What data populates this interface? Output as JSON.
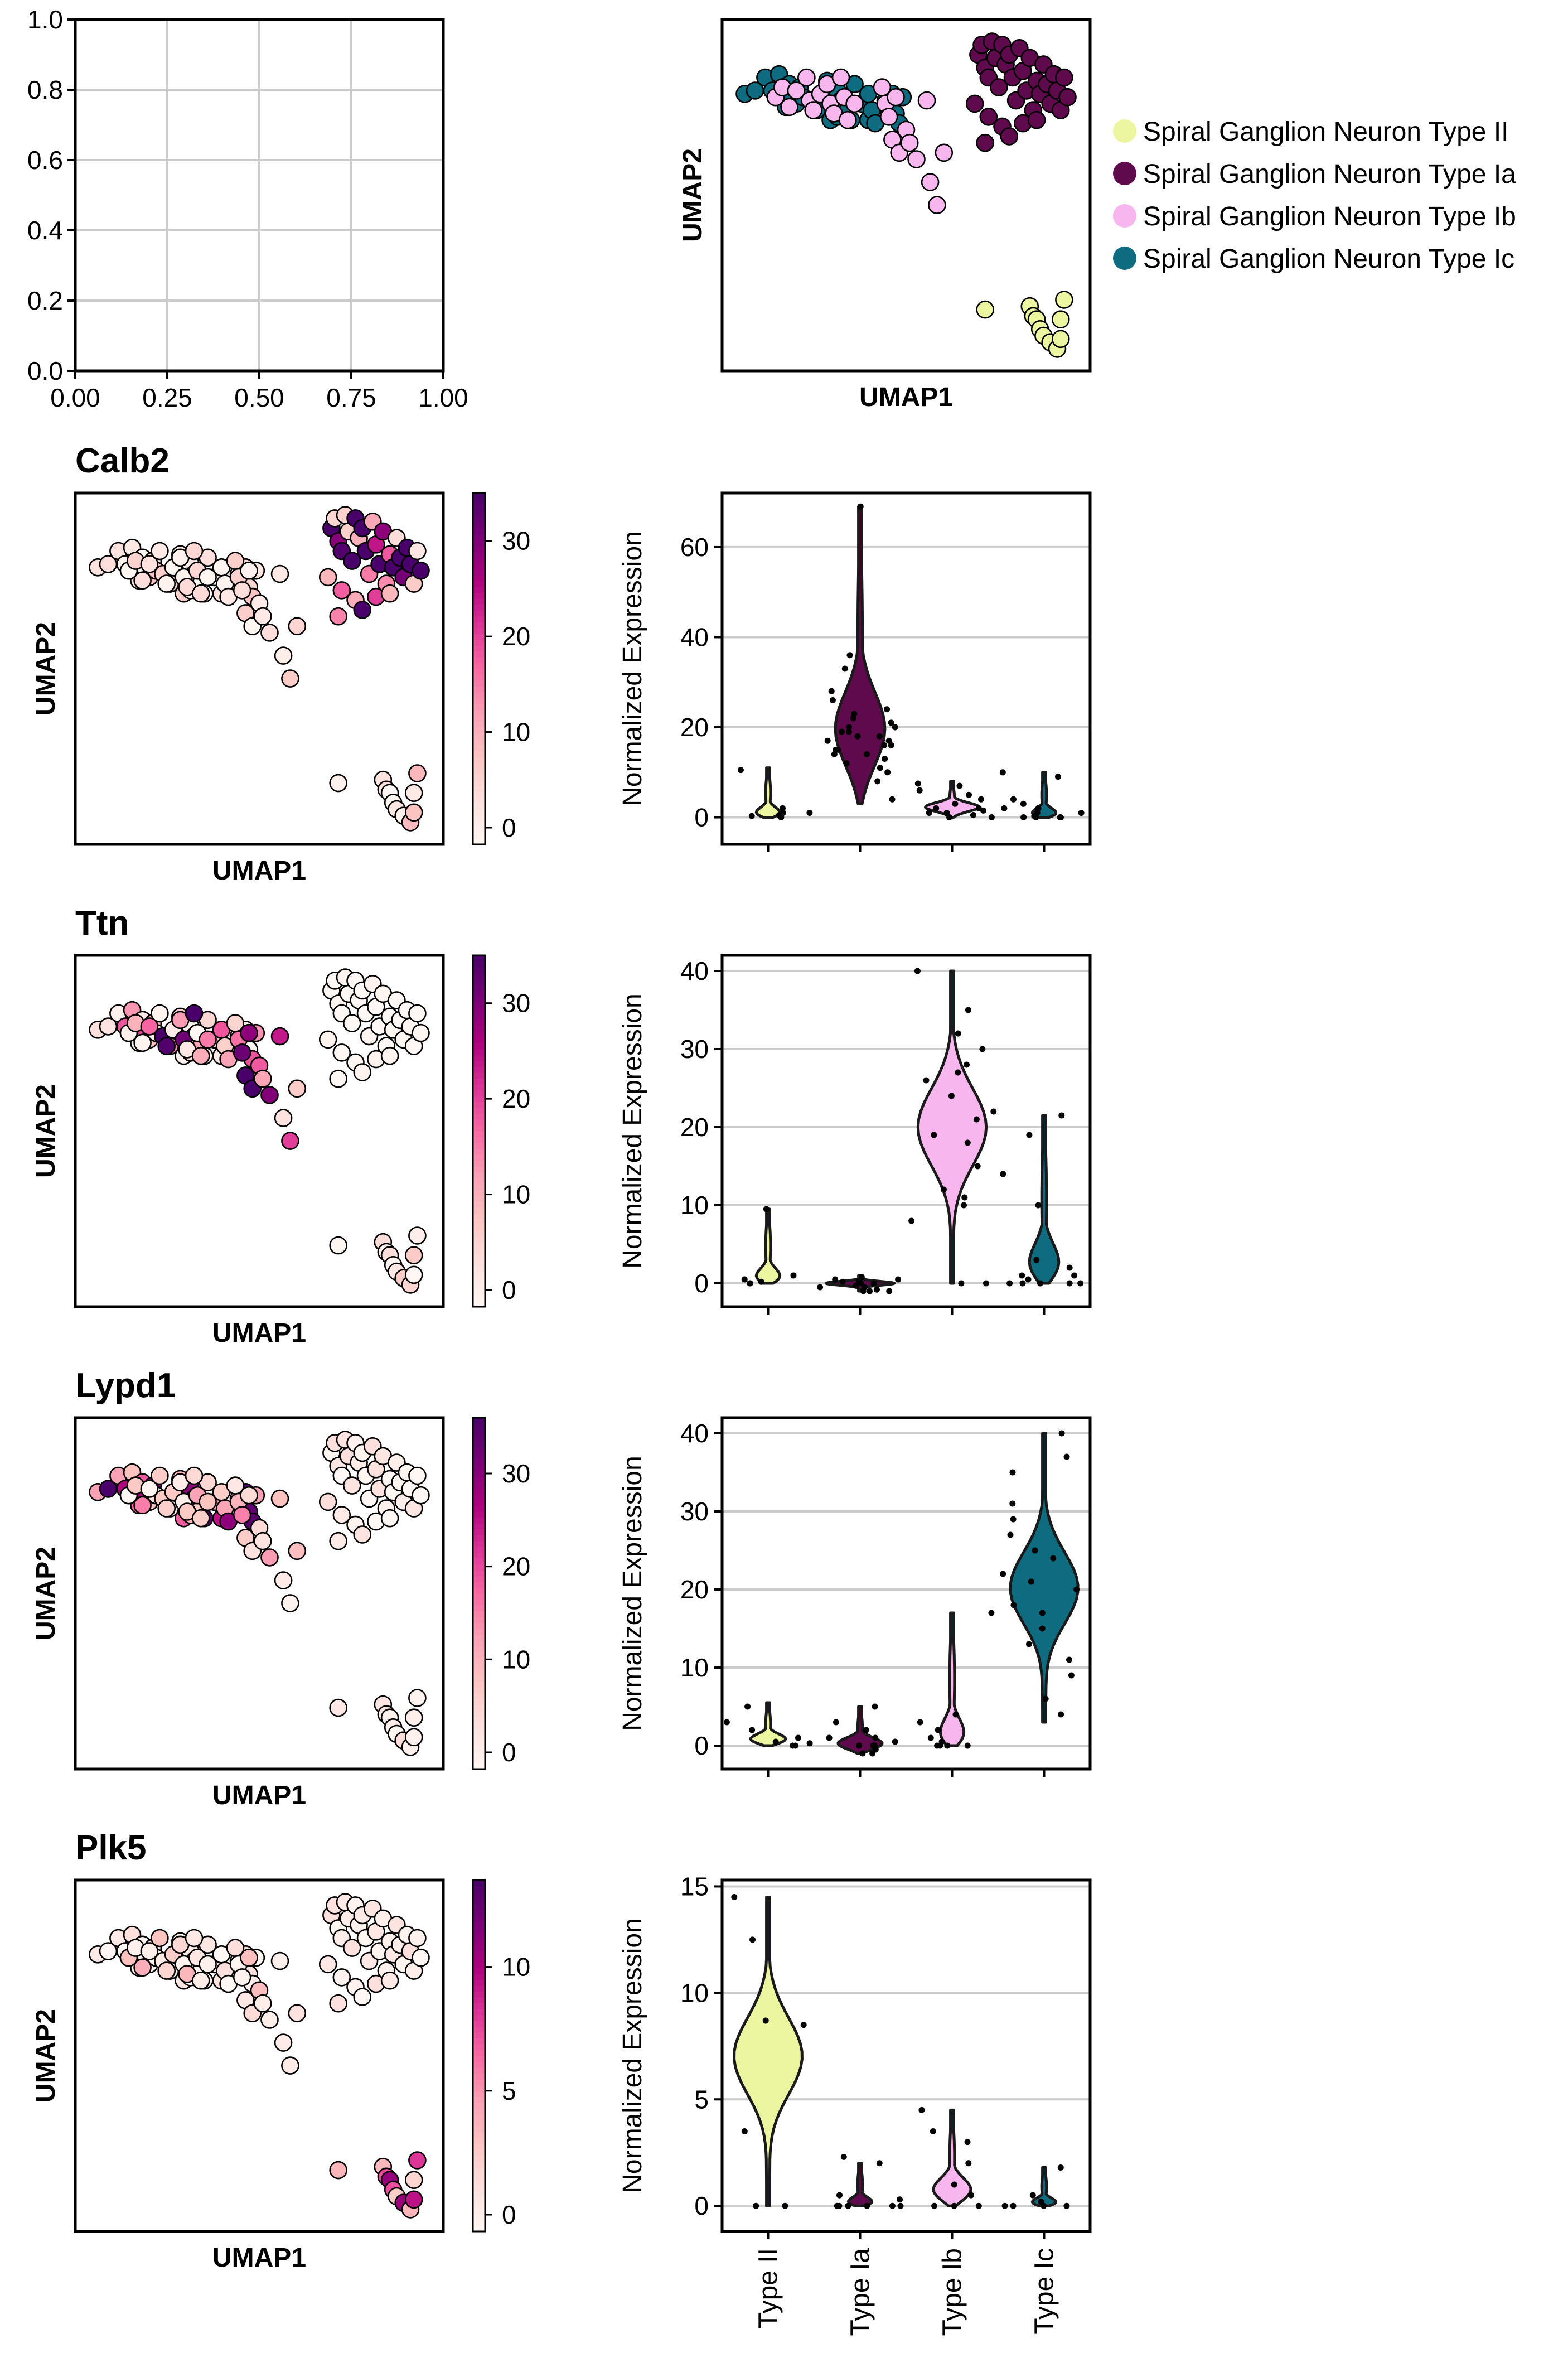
{
  "chart_data": {
    "type": "scatter",
    "cell_types": [
      {
        "key": "II",
        "name": "Spiral Ganglion Neuron Type II",
        "short": "Type II",
        "color": "#ecf5a0"
      },
      {
        "key": "Ia",
        "name": "Spiral Ganglion Neuron Type Ia",
        "short": "Type Ia",
        "color": "#5e0a4c"
      },
      {
        "key": "Ib",
        "name": "Spiral Ganglion Neuron Type Ib",
        "short": "Type Ib",
        "color": "#f7b6ee"
      },
      {
        "key": "Ic",
        "name": "Spiral Ganglion Neuron Type Ic",
        "short": "Type Ic",
        "color": "#0f6b80"
      }
    ],
    "empty_panel": {
      "x_ticks": [
        "0.00",
        "0.25",
        "0.50",
        "0.75",
        "1.00"
      ],
      "y_ticks": [
        "0.0",
        "0.2",
        "0.4",
        "0.6",
        "0.8",
        "1.0"
      ]
    },
    "umap": {
      "xlabel": "UMAP1",
      "ylabel": "UMAP2",
      "legend_position": "right",
      "points": [
        {
          "x": 0.03,
          "y": 0.81,
          "t": "Ic"
        },
        {
          "x": 0.06,
          "y": 0.82,
          "t": "Ic"
        },
        {
          "x": 0.09,
          "y": 0.86,
          "t": "Ic"
        },
        {
          "x": 0.11,
          "y": 0.82,
          "t": "Ic"
        },
        {
          "x": 0.13,
          "y": 0.87,
          "t": "Ic"
        },
        {
          "x": 0.14,
          "y": 0.8,
          "t": "Ic"
        },
        {
          "x": 0.15,
          "y": 0.77,
          "t": "Ic"
        },
        {
          "x": 0.16,
          "y": 0.84,
          "t": "Ic"
        },
        {
          "x": 0.17,
          "y": 0.8,
          "t": "Ic"
        },
        {
          "x": 0.18,
          "y": 0.78,
          "t": "Ic"
        },
        {
          "x": 0.19,
          "y": 0.83,
          "t": "Ic"
        },
        {
          "x": 0.2,
          "y": 0.8,
          "t": "Ic"
        },
        {
          "x": 0.24,
          "y": 0.76,
          "t": "Ic"
        },
        {
          "x": 0.27,
          "y": 0.85,
          "t": "Ic"
        },
        {
          "x": 0.28,
          "y": 0.73,
          "t": "Ic"
        },
        {
          "x": 0.29,
          "y": 0.8,
          "t": "Ic"
        },
        {
          "x": 0.3,
          "y": 0.74,
          "t": "Ic"
        },
        {
          "x": 0.3,
          "y": 0.82,
          "t": "Ic"
        },
        {
          "x": 0.31,
          "y": 0.79,
          "t": "Ic"
        },
        {
          "x": 0.33,
          "y": 0.76,
          "t": "Ic"
        },
        {
          "x": 0.34,
          "y": 0.73,
          "t": "Ic"
        },
        {
          "x": 0.35,
          "y": 0.84,
          "t": "Ic"
        },
        {
          "x": 0.37,
          "y": 0.78,
          "t": "Ic"
        },
        {
          "x": 0.39,
          "y": 0.81,
          "t": "Ic"
        },
        {
          "x": 0.39,
          "y": 0.73,
          "t": "Ic"
        },
        {
          "x": 0.4,
          "y": 0.76,
          "t": "Ic"
        },
        {
          "x": 0.41,
          "y": 0.72,
          "t": "Ic"
        },
        {
          "x": 0.44,
          "y": 0.79,
          "t": "Ic"
        },
        {
          "x": 0.45,
          "y": 0.76,
          "t": "Ic"
        },
        {
          "x": 0.46,
          "y": 0.81,
          "t": "Ic"
        },
        {
          "x": 0.47,
          "y": 0.75,
          "t": "Ic"
        },
        {
          "x": 0.48,
          "y": 0.72,
          "t": "Ic"
        },
        {
          "x": 0.49,
          "y": 0.8,
          "t": "Ic"
        },
        {
          "x": 0.12,
          "y": 0.8,
          "t": "Ib"
        },
        {
          "x": 0.14,
          "y": 0.83,
          "t": "Ib"
        },
        {
          "x": 0.16,
          "y": 0.77,
          "t": "Ib"
        },
        {
          "x": 0.18,
          "y": 0.82,
          "t": "Ib"
        },
        {
          "x": 0.21,
          "y": 0.86,
          "t": "Ib"
        },
        {
          "x": 0.22,
          "y": 0.79,
          "t": "Ib"
        },
        {
          "x": 0.23,
          "y": 0.76,
          "t": "Ib"
        },
        {
          "x": 0.25,
          "y": 0.81,
          "t": "Ib"
        },
        {
          "x": 0.27,
          "y": 0.84,
          "t": "Ib"
        },
        {
          "x": 0.28,
          "y": 0.78,
          "t": "Ib"
        },
        {
          "x": 0.29,
          "y": 0.75,
          "t": "Ib"
        },
        {
          "x": 0.31,
          "y": 0.86,
          "t": "Ib"
        },
        {
          "x": 0.32,
          "y": 0.8,
          "t": "Ib"
        },
        {
          "x": 0.33,
          "y": 0.73,
          "t": "Ib"
        },
        {
          "x": 0.35,
          "y": 0.78,
          "t": "Ib"
        },
        {
          "x": 0.43,
          "y": 0.83,
          "t": "Ib"
        },
        {
          "x": 0.44,
          "y": 0.78,
          "t": "Ib"
        },
        {
          "x": 0.45,
          "y": 0.74,
          "t": "Ib"
        },
        {
          "x": 0.46,
          "y": 0.67,
          "t": "Ib"
        },
        {
          "x": 0.47,
          "y": 0.8,
          "t": "Ib"
        },
        {
          "x": 0.48,
          "y": 0.63,
          "t": "Ib"
        },
        {
          "x": 0.5,
          "y": 0.7,
          "t": "Ib"
        },
        {
          "x": 0.51,
          "y": 0.66,
          "t": "Ib"
        },
        {
          "x": 0.53,
          "y": 0.61,
          "t": "Ib"
        },
        {
          "x": 0.56,
          "y": 0.79,
          "t": "Ib"
        },
        {
          "x": 0.57,
          "y": 0.54,
          "t": "Ib"
        },
        {
          "x": 0.59,
          "y": 0.47,
          "t": "Ib"
        },
        {
          "x": 0.61,
          "y": 0.63,
          "t": "Ib"
        },
        {
          "x": 0.71,
          "y": 0.93,
          "t": "Ia"
        },
        {
          "x": 0.72,
          "y": 0.96,
          "t": "Ia"
        },
        {
          "x": 0.73,
          "y": 0.89,
          "t": "Ia"
        },
        {
          "x": 0.74,
          "y": 0.86,
          "t": "Ia"
        },
        {
          "x": 0.75,
          "y": 0.97,
          "t": "Ia"
        },
        {
          "x": 0.76,
          "y": 0.92,
          "t": "Ia"
        },
        {
          "x": 0.77,
          "y": 0.83,
          "t": "Ia"
        },
        {
          "x": 0.78,
          "y": 0.96,
          "t": "Ia"
        },
        {
          "x": 0.79,
          "y": 0.9,
          "t": "Ia"
        },
        {
          "x": 0.8,
          "y": 0.93,
          "t": "Ia"
        },
        {
          "x": 0.81,
          "y": 0.86,
          "t": "Ia"
        },
        {
          "x": 0.82,
          "y": 0.79,
          "t": "Ia"
        },
        {
          "x": 0.83,
          "y": 0.95,
          "t": "Ia"
        },
        {
          "x": 0.84,
          "y": 0.88,
          "t": "Ia"
        },
        {
          "x": 0.85,
          "y": 0.82,
          "t": "Ia"
        },
        {
          "x": 0.86,
          "y": 0.92,
          "t": "Ia"
        },
        {
          "x": 0.87,
          "y": 0.76,
          "t": "Ia"
        },
        {
          "x": 0.88,
          "y": 0.85,
          "t": "Ia"
        },
        {
          "x": 0.89,
          "y": 0.81,
          "t": "Ia"
        },
        {
          "x": 0.9,
          "y": 0.9,
          "t": "Ia"
        },
        {
          "x": 0.91,
          "y": 0.84,
          "t": "Ia"
        },
        {
          "x": 0.92,
          "y": 0.78,
          "t": "Ia"
        },
        {
          "x": 0.93,
          "y": 0.87,
          "t": "Ia"
        },
        {
          "x": 0.94,
          "y": 0.82,
          "t": "Ia"
        },
        {
          "x": 0.95,
          "y": 0.76,
          "t": "Ia"
        },
        {
          "x": 0.96,
          "y": 0.86,
          "t": "Ia"
        },
        {
          "x": 0.97,
          "y": 0.8,
          "t": "Ia"
        },
        {
          "x": 0.7,
          "y": 0.78,
          "t": "Ia"
        },
        {
          "x": 0.74,
          "y": 0.74,
          "t": "Ia"
        },
        {
          "x": 0.78,
          "y": 0.71,
          "t": "Ia"
        },
        {
          "x": 0.84,
          "y": 0.72,
          "t": "Ia"
        },
        {
          "x": 0.88,
          "y": 0.73,
          "t": "Ia"
        },
        {
          "x": 0.73,
          "y": 0.66,
          "t": "Ia"
        },
        {
          "x": 0.8,
          "y": 0.68,
          "t": "Ia"
        },
        {
          "x": 0.73,
          "y": 0.15,
          "t": "II"
        },
        {
          "x": 0.86,
          "y": 0.16,
          "t": "II"
        },
        {
          "x": 0.87,
          "y": 0.13,
          "t": "II"
        },
        {
          "x": 0.88,
          "y": 0.12,
          "t": "II"
        },
        {
          "x": 0.89,
          "y": 0.09,
          "t": "II"
        },
        {
          "x": 0.9,
          "y": 0.07,
          "t": "II"
        },
        {
          "x": 0.92,
          "y": 0.05,
          "t": "II"
        },
        {
          "x": 0.94,
          "y": 0.03,
          "t": "II"
        },
        {
          "x": 0.95,
          "y": 0.12,
          "t": "II"
        },
        {
          "x": 0.96,
          "y": 0.18,
          "t": "II"
        },
        {
          "x": 0.95,
          "y": 0.06,
          "t": "II"
        }
      ]
    },
    "genes": [
      {
        "gene": "Calb2",
        "ylabel": "Normalized Expression",
        "ylim": [
          -6,
          72
        ],
        "yticks": [
          0,
          20,
          40,
          60
        ],
        "color_max": 35,
        "cbar_ticks": [
          0,
          10,
          20,
          30
        ],
        "violins": {
          "II": {
            "min": 0,
            "max": 11,
            "median": 0,
            "strips": [
              0,
              0.3,
              0.5,
              1,
              1,
              2,
              10.5
            ]
          },
          "Ia": {
            "min": 3,
            "max": 69,
            "median": 17,
            "strips": [
              4,
              8,
              10,
              11,
              12,
              13,
              14,
              14,
              15,
              15,
              16,
              16,
              17,
              17,
              18,
              18,
              19,
              19,
              20,
              20,
              21,
              22,
              23,
              24,
              26,
              28,
              33,
              36,
              69
            ]
          },
          "Ib": {
            "min": 0,
            "max": 8,
            "median": 2,
            "strips": [
              0,
              0,
              0.5,
              1,
              1,
              1.5,
              2,
              2,
              3,
              4,
              5,
              6,
              7,
              7.5
            ]
          },
          "Ic": {
            "min": 0,
            "max": 10,
            "median": 0,
            "strips": [
              0,
              0,
              0,
              0,
              0.3,
              0.5,
              1,
              1,
              2,
              2,
              3,
              4,
              9,
              10
            ]
          }
        }
      },
      {
        "gene": "Ttn",
        "ylabel": "Normalized Expression",
        "ylim": [
          -3,
          42
        ],
        "yticks": [
          0,
          10,
          20,
          30,
          40
        ],
        "color_max": 35,
        "cbar_ticks": [
          0,
          10,
          20,
          30
        ],
        "violins": {
          "II": {
            "min": 0,
            "max": 9.5,
            "median": 0,
            "strips": [
              0,
              0,
              0.2,
              0.5,
              1,
              9.5
            ]
          },
          "Ia": {
            "min": -1,
            "max": 1,
            "median": 0,
            "strips": [
              -1,
              -1,
              -1,
              -0.8,
              -0.5,
              -0.5,
              -0.3,
              0,
              0,
              0.2,
              0.3,
              0.5,
              0.5,
              0.8
            ]
          },
          "Ib": {
            "min": 0,
            "max": 40,
            "median": 20,
            "strips": [
              0,
              0,
              8,
              10,
              11,
              12,
              15,
              18,
              19,
              21,
              22,
              24,
              26,
              27,
              28,
              30,
              32,
              35,
              40
            ]
          },
          "Ic": {
            "min": 0,
            "max": 21.5,
            "median": 1,
            "strips": [
              0,
              0,
              0,
              0,
              0,
              0.5,
              1,
              1,
              2,
              3,
              10,
              14,
              19,
              21.5
            ]
          }
        }
      },
      {
        "gene": "Lypd1",
        "ylabel": "Normalized Expression",
        "ylim": [
          -3,
          42
        ],
        "yticks": [
          0,
          10,
          20,
          30,
          40
        ],
        "color_max": 36,
        "cbar_ticks": [
          0,
          10,
          20,
          30
        ],
        "violins": {
          "II": {
            "min": 0,
            "max": 5.5,
            "median": 0.5,
            "strips": [
              0,
              0,
              0.3,
              0.5,
              1,
              2,
              3,
              5
            ]
          },
          "Ia": {
            "min": -1,
            "max": 5,
            "median": 0,
            "strips": [
              -1,
              -1,
              -0.5,
              0,
              0,
              0,
              0.5,
              1,
              1,
              2,
              3,
              5
            ]
          },
          "Ib": {
            "min": 0,
            "max": 17,
            "median": 0,
            "strips": [
              0,
              0,
              0,
              0,
              0.5,
              1,
              2,
              3,
              4,
              17
            ]
          },
          "Ic": {
            "min": 3,
            "max": 40,
            "median": 20,
            "strips": [
              4,
              6,
              9,
              11,
              13,
              15,
              17,
              18,
              20,
              21,
              22,
              24,
              25,
              27,
              29,
              31,
              35,
              37,
              40
            ]
          }
        }
      },
      {
        "gene": "Plk5",
        "ylabel": "Normalized Expression",
        "ylim": [
          -1.2,
          15.3
        ],
        "yticks": [
          0,
          5,
          10,
          15
        ],
        "color_max": 13.5,
        "cbar_ticks": [
          0,
          5,
          10
        ],
        "violins": {
          "II": {
            "min": 0,
            "max": 14.5,
            "median": 7,
            "strips": [
              0,
              0,
              3.5,
              8.7,
              8.5,
              12.5,
              14.5
            ]
          },
          "Ia": {
            "min": 0,
            "max": 2,
            "median": 0,
            "strips": [
              0,
              0,
              0,
              0,
              0,
              0,
              0.3,
              0.5,
              2,
              2.3
            ]
          },
          "Ib": {
            "min": 0,
            "max": 4.5,
            "median": 0.5,
            "strips": [
              0,
              0,
              0,
              0.5,
              1,
              2,
              3,
              3.5,
              4.5
            ]
          },
          "Ic": {
            "min": 0,
            "max": 1.8,
            "median": 0,
            "strips": [
              0,
              0,
              0,
              0,
              0.2,
              0.5,
              1.8
            ]
          }
        }
      }
    ]
  }
}
